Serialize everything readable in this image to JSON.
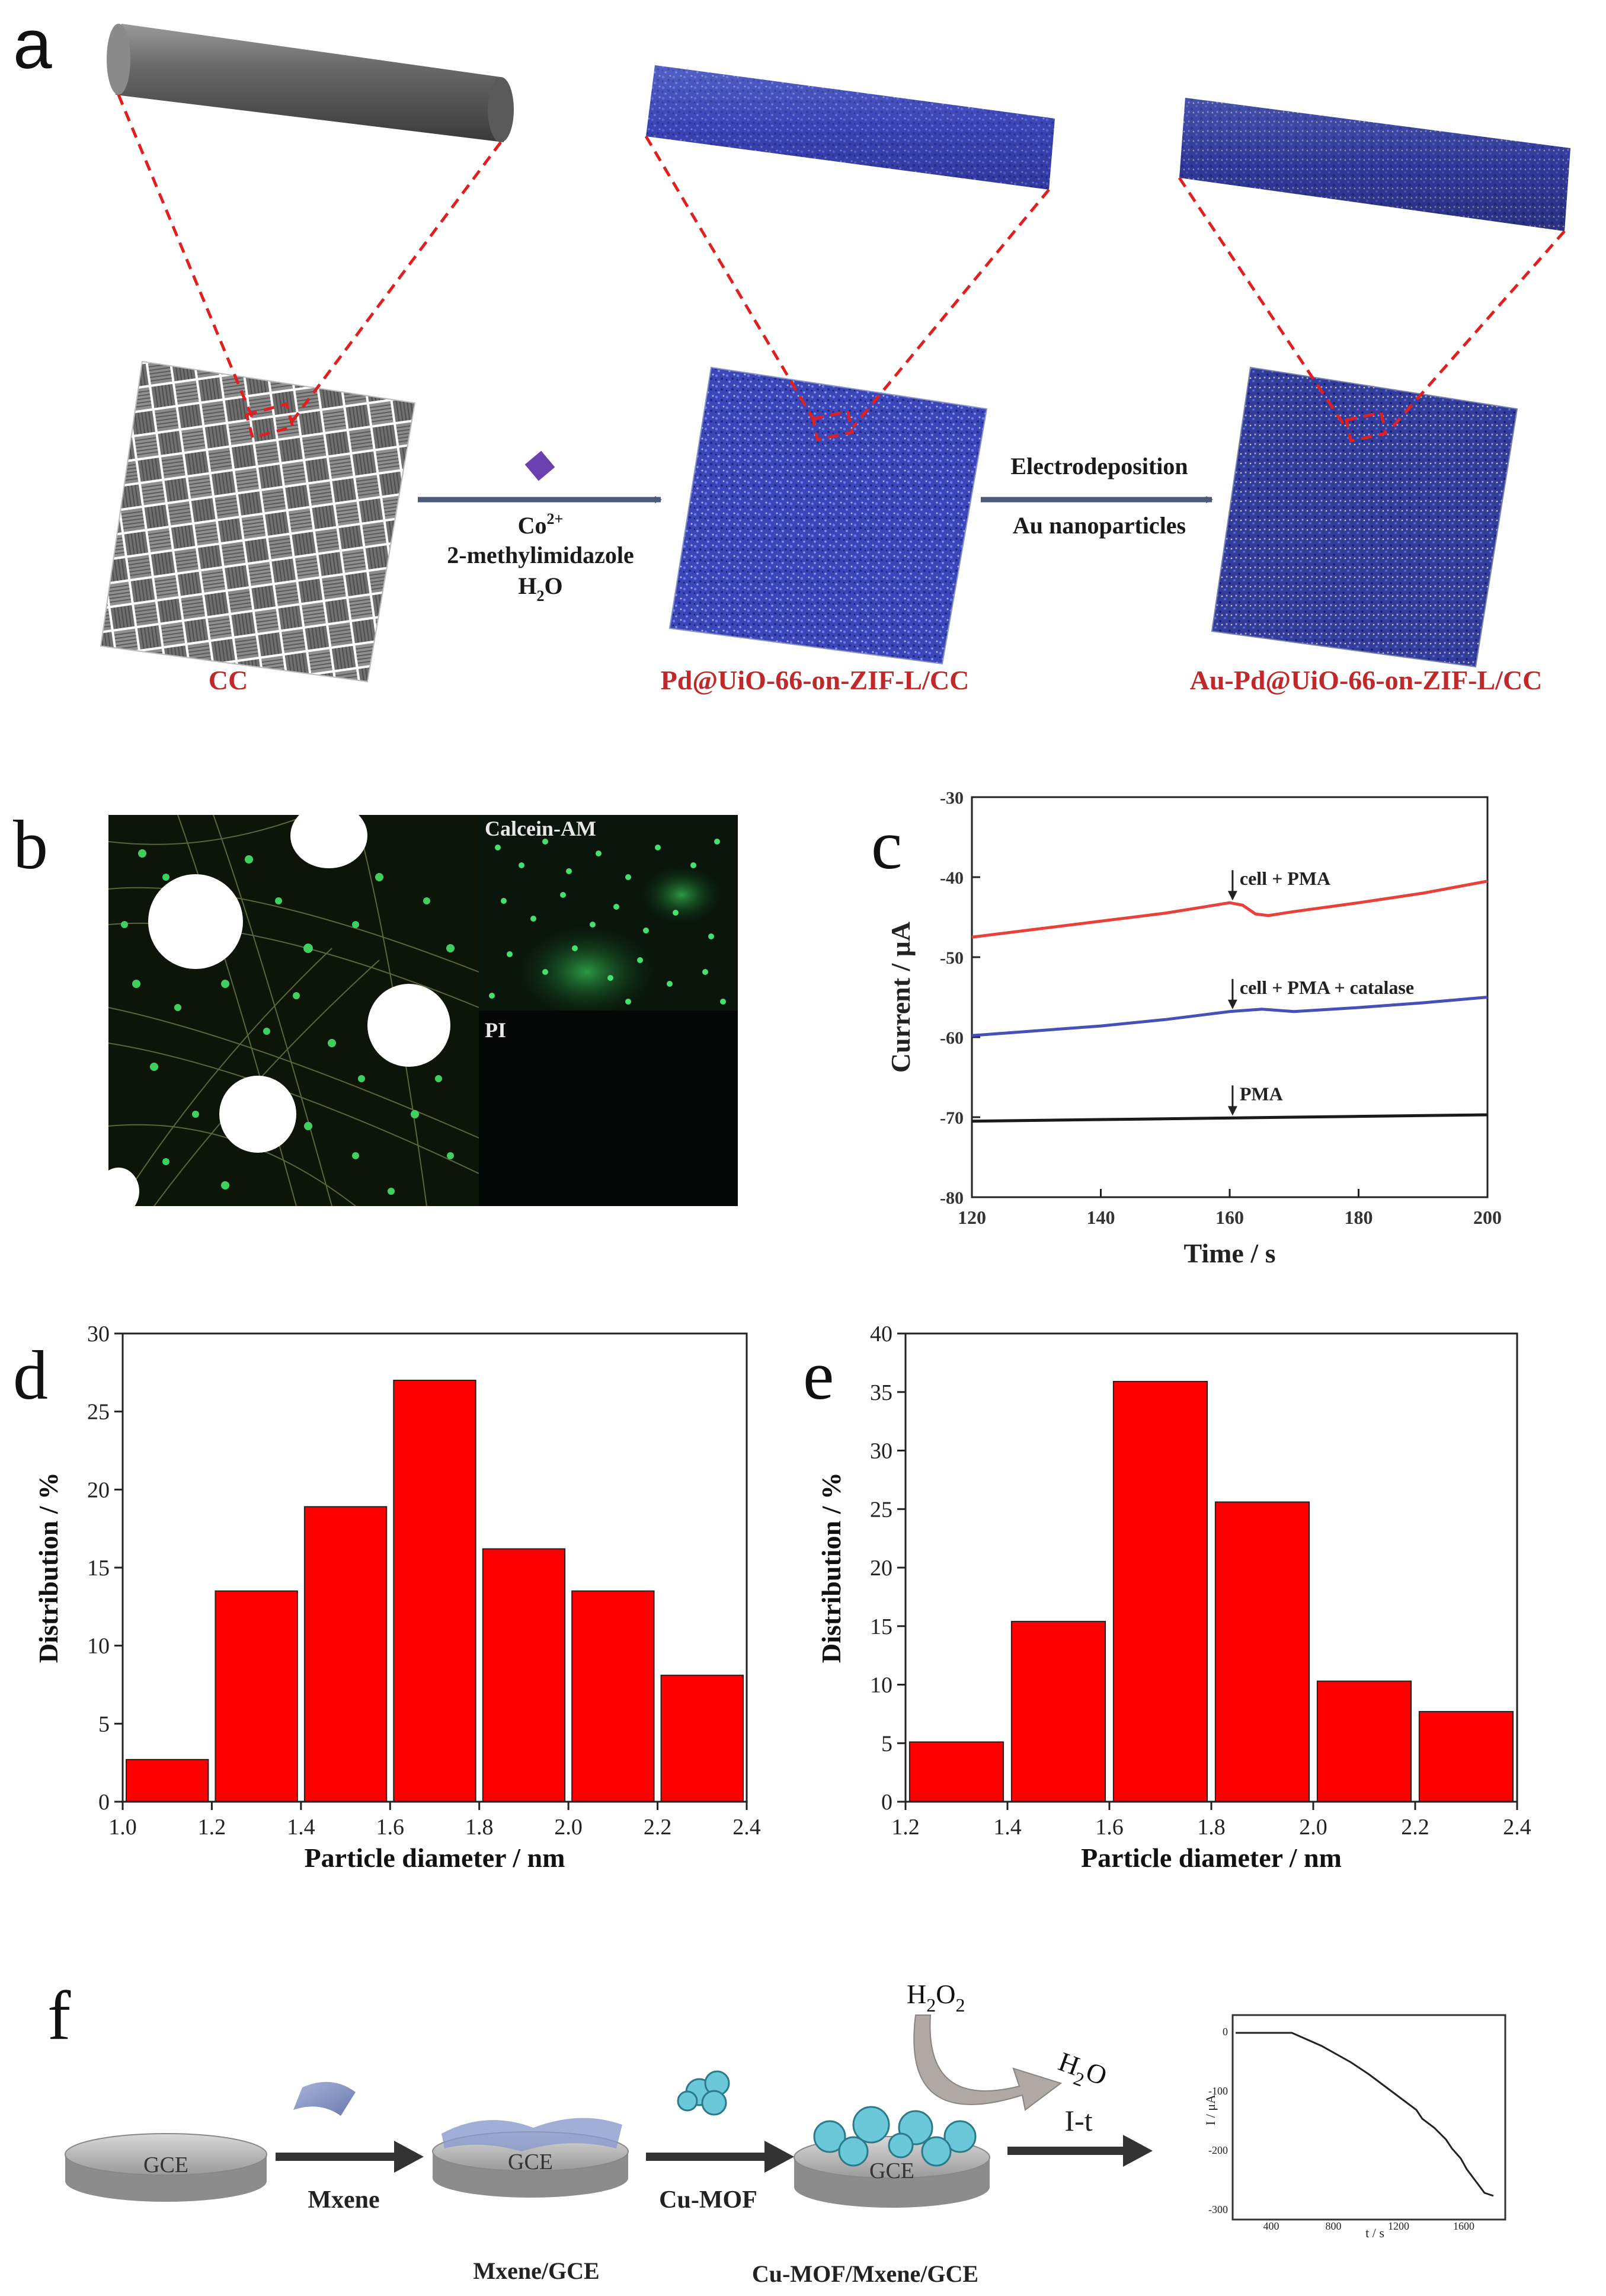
{
  "panel_letters": {
    "a": "a",
    "b": "b",
    "c": "c",
    "d": "d",
    "e": "e",
    "f": "f"
  },
  "panel_a": {
    "labels": [
      "CC",
      "Pd@UiO-66-on-ZIF-L/CC",
      "Au-Pd@UiO-66-on-ZIF-L/CC"
    ],
    "arrow1": {
      "line1": "Co",
      "line1_sup": "2+",
      "line2": "2-methylimidazole",
      "line3": "H",
      "line3_sub": "2",
      "line3_end": "O"
    },
    "arrow2": {
      "line1": "Electrodeposition",
      "line2": "Au nanoparticles"
    },
    "colors": {
      "label": "#c0282a",
      "guide": "#e02020",
      "arrow": "#4a5a78",
      "diamond": "#6a3fb0"
    }
  },
  "panel_b": {
    "label_top": "Calcein-AM",
    "label_bottom": "PI"
  },
  "panel_c": {
    "chart_data": {
      "type": "line",
      "xlabel": "Time / s",
      "ylabel": "Current / μA",
      "xlim": [
        120,
        200
      ],
      "ylim": [
        -80,
        -30
      ],
      "xticks": [
        120,
        140,
        160,
        180,
        200
      ],
      "yticks": [
        -30,
        -40,
        -50,
        -60,
        -70,
        -80
      ],
      "series": [
        {
          "color": "#e8403a",
          "x": [
            120,
            130,
            140,
            150,
            160,
            162,
            164,
            166,
            170,
            180,
            190,
            200
          ],
          "y": [
            -47.5,
            -46.5,
            -45.5,
            -44.5,
            -43.2,
            -43.5,
            -44.6,
            -44.8,
            -44.3,
            -43.2,
            -42.0,
            -40.5
          ]
        },
        {
          "color": "#4550b8",
          "x": [
            120,
            130,
            140,
            150,
            160,
            165,
            170,
            180,
            190,
            200
          ],
          "y": [
            -59.8,
            -59.2,
            -58.6,
            -57.8,
            -56.8,
            -56.5,
            -56.8,
            -56.3,
            -55.7,
            -55.0
          ]
        },
        {
          "color": "#1a1a1a",
          "x": [
            120,
            140,
            160,
            180,
            200
          ],
          "y": [
            -70.5,
            -70.3,
            -70.1,
            -69.9,
            -69.7
          ]
        }
      ],
      "annotations": [
        {
          "text": "cell + PMA",
          "x": 161,
          "y": -43.2
        },
        {
          "text": "cell + PMA + catalase",
          "x": 161,
          "y": -56.8
        },
        {
          "text": "PMA",
          "x": 161,
          "y": -70.1
        }
      ]
    }
  },
  "panel_d": {
    "chart_data": {
      "type": "bar",
      "xlabel": "Particle diameter / nm",
      "ylabel": "Distribution / %",
      "xlim": [
        1.0,
        2.4
      ],
      "ylim": [
        0,
        30
      ],
      "xticks": [
        "1.0",
        "1.2",
        "1.4",
        "1.6",
        "1.8",
        "2.0",
        "2.2",
        "2.4"
      ],
      "yticks": [
        0,
        5,
        10,
        15,
        20,
        25,
        30
      ],
      "bar_centers": [
        1.1,
        1.3,
        1.5,
        1.7,
        1.9,
        2.1,
        2.3
      ],
      "values": [
        2.7,
        13.5,
        18.9,
        27.0,
        16.2,
        13.5,
        8.1
      ],
      "bar_color": "#ff0000"
    }
  },
  "panel_e": {
    "chart_data": {
      "type": "bar",
      "xlabel": "Particle diameter / nm",
      "ylabel": "Distribution / %",
      "xlim": [
        1.2,
        2.4
      ],
      "ylim": [
        0,
        40
      ],
      "xticks": [
        "1.2",
        "1.4",
        "1.6",
        "1.8",
        "2.0",
        "2.2",
        "2.4"
      ],
      "yticks": [
        0,
        5,
        10,
        15,
        20,
        25,
        30,
        35,
        40
      ],
      "bar_centers": [
        1.3,
        1.5,
        1.7,
        1.9,
        2.1,
        2.3
      ],
      "values": [
        5.1,
        15.4,
        35.9,
        25.6,
        10.3,
        7.7
      ],
      "bar_color": "#ff0000"
    }
  },
  "panel_f": {
    "steps": [
      "Mxene",
      "Cu-MOF",
      "I-t"
    ],
    "electrodes": [
      "GCE",
      "GCE",
      "GCE"
    ],
    "captions": [
      "Mxene/GCE",
      "Cu-MOF/Mxene/GCE"
    ],
    "h2o2": {
      "H": "H",
      "sub": "2",
      "O": "O",
      "sub2": "2"
    },
    "h2o": {
      "H": "H",
      "sub": "2",
      "O": "O"
    },
    "inset": {
      "ylabel": "I / μA",
      "xlabel": "t / s",
      "yticks": [
        "0",
        "-100",
        "-200",
        "-300"
      ],
      "xticks": [
        "400",
        "800",
        "1200",
        "1600"
      ]
    }
  }
}
